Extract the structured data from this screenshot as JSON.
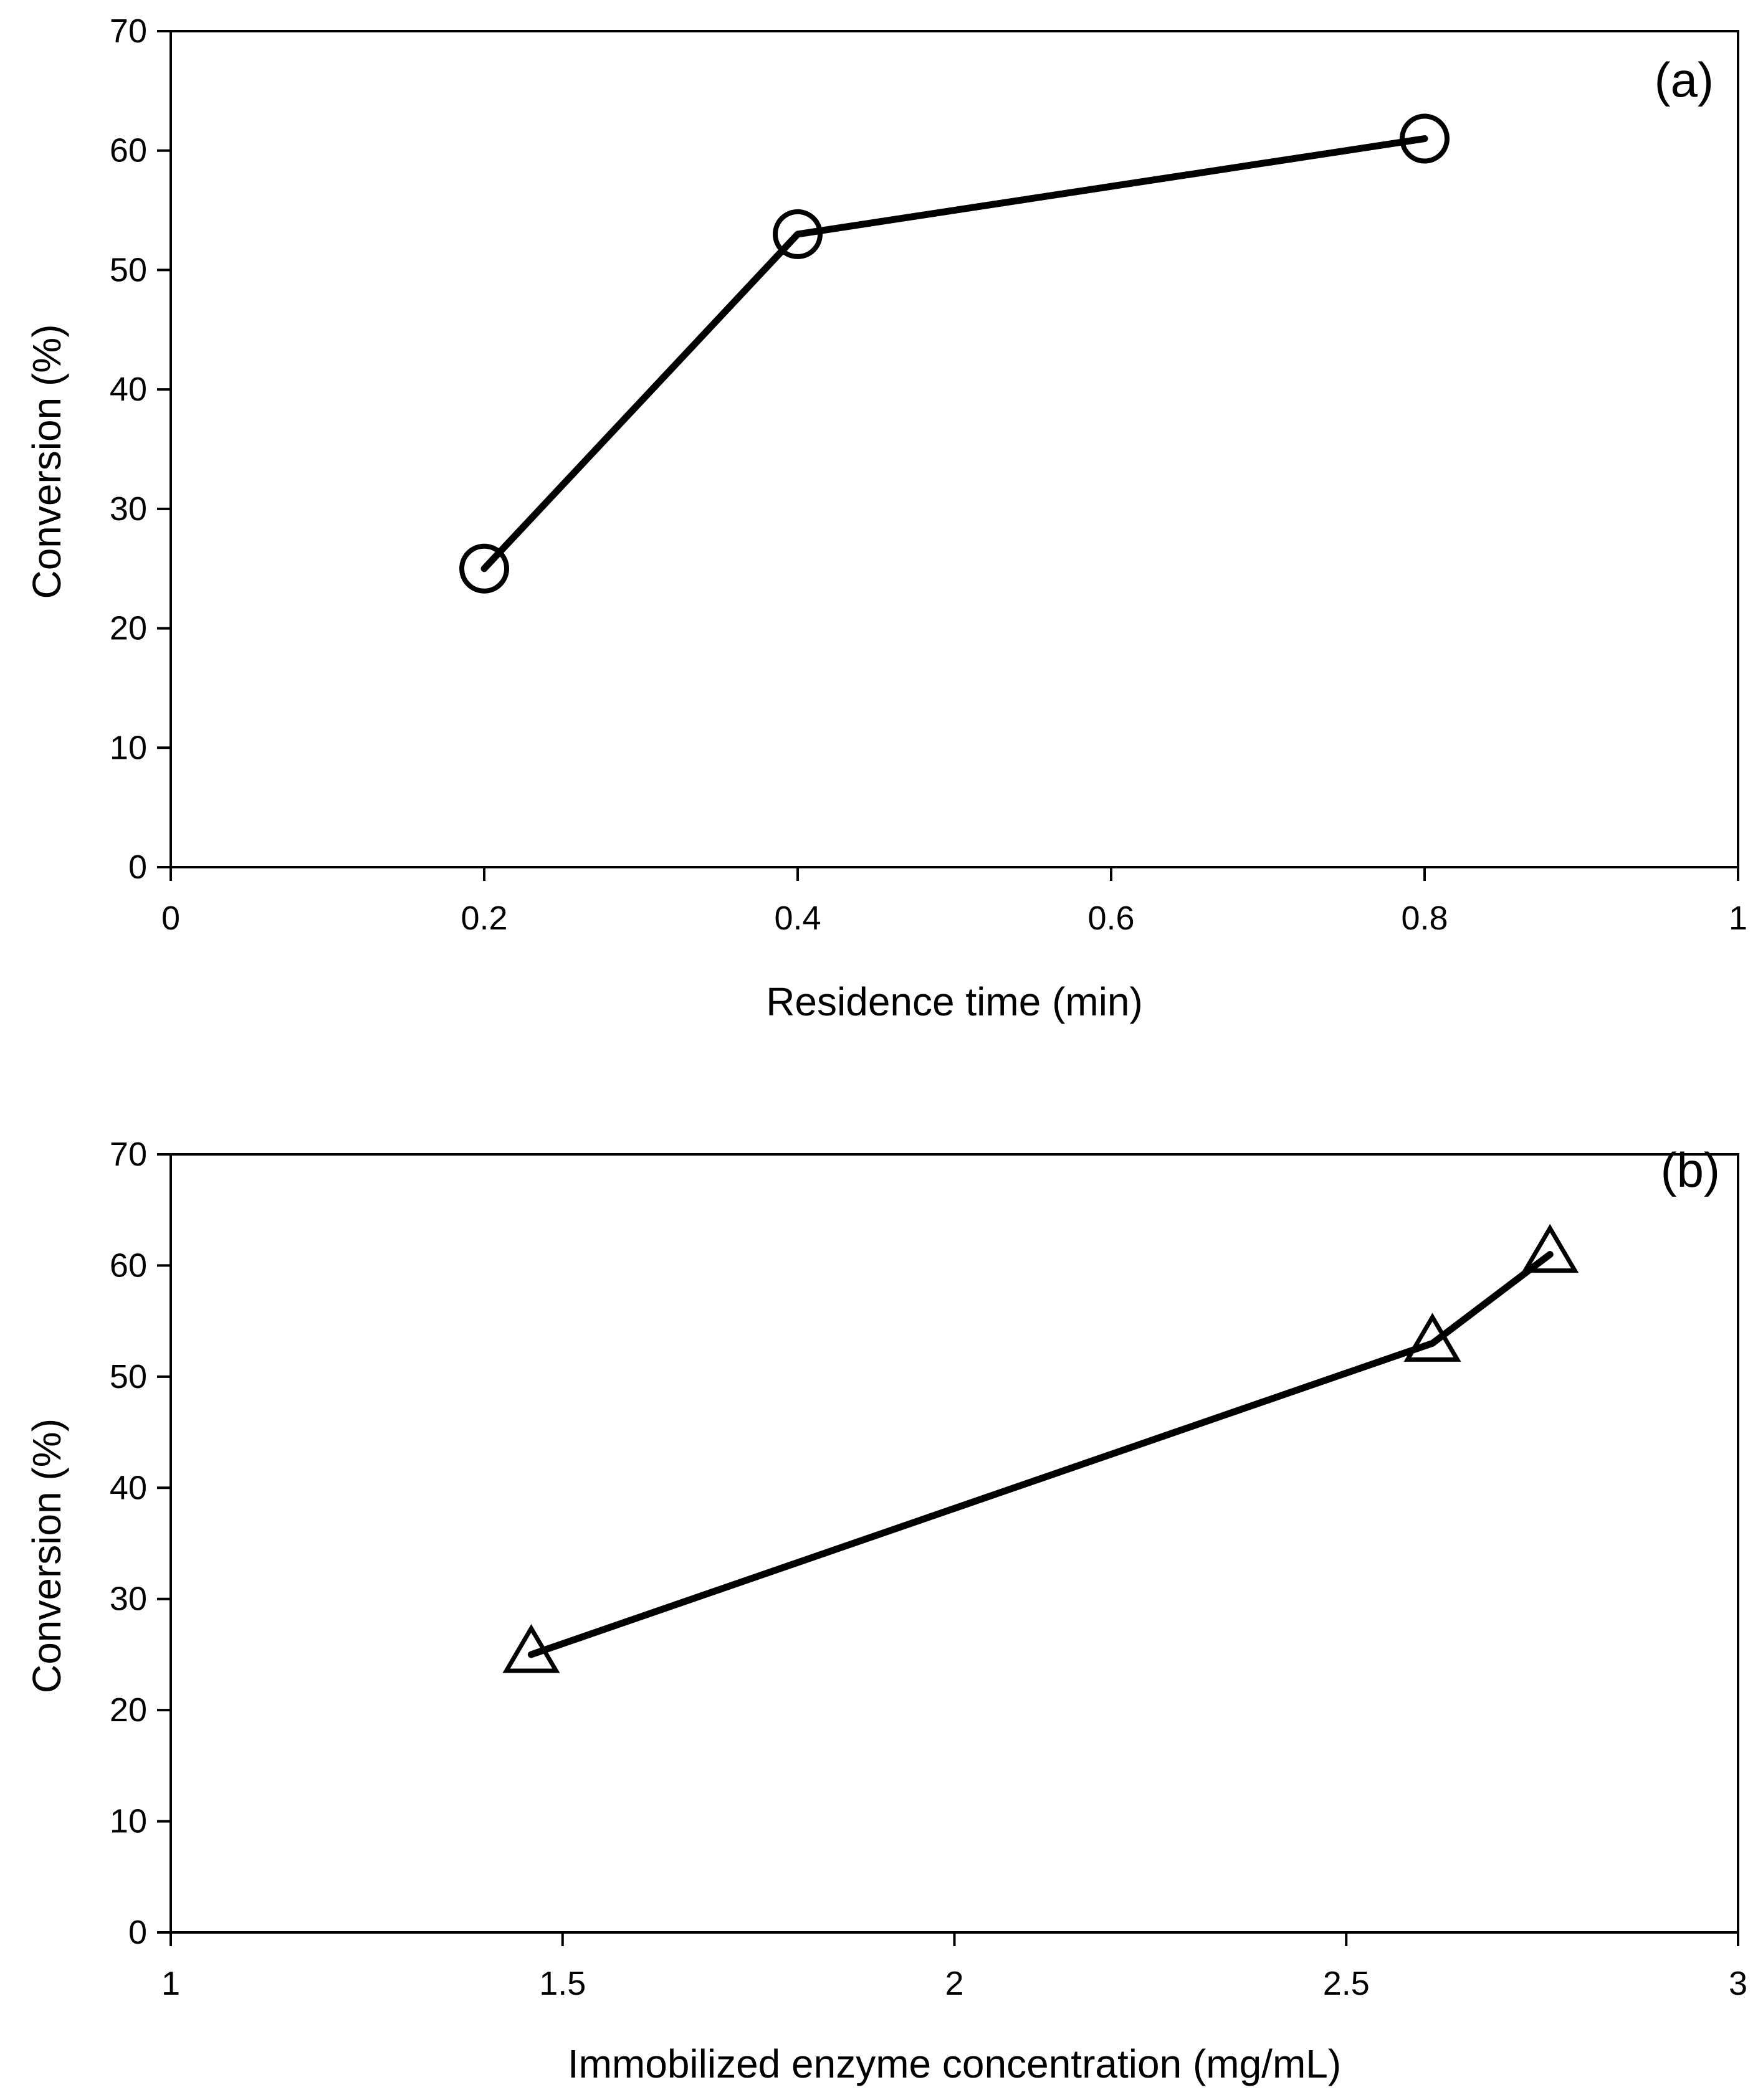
{
  "chart_data": [
    {
      "type": "line",
      "panel_label": "(a)",
      "title": "",
      "xlabel": "Residence time (min)",
      "ylabel": "Conversion (%)",
      "xlim": [
        0,
        1
      ],
      "ylim": [
        0,
        70
      ],
      "xticks": [
        0,
        0.2,
        0.4,
        0.6,
        0.8,
        1
      ],
      "xtick_labels": [
        "0",
        "0.2",
        "0.4",
        "0.6",
        "0.8",
        "1"
      ],
      "yticks": [
        0,
        10,
        20,
        30,
        40,
        50,
        60,
        70
      ],
      "ytick_labels": [
        "0",
        "10",
        "20",
        "30",
        "40",
        "50",
        "60",
        "70"
      ],
      "grid": false,
      "marker": "circle",
      "series": [
        {
          "name": "Conversion",
          "x": [
            0.2,
            0.4,
            0.8
          ],
          "y": [
            25,
            53,
            61
          ]
        }
      ]
    },
    {
      "type": "line",
      "panel_label": "(b)",
      "title": "",
      "xlabel": "Immobilized enzyme concentration (mg/mL)",
      "ylabel": "Conversion (%)",
      "xlim": [
        1,
        3
      ],
      "ylim": [
        0,
        70
      ],
      "xticks": [
        1,
        1.5,
        2,
        2.5,
        3
      ],
      "xtick_labels": [
        "1",
        "1.5",
        "2",
        "2.5",
        "3"
      ],
      "yticks": [
        0,
        10,
        20,
        30,
        40,
        50,
        60,
        70
      ],
      "ytick_labels": [
        "0",
        "10",
        "20",
        "30",
        "40",
        "50",
        "60",
        "70"
      ],
      "grid": false,
      "marker": "triangle",
      "series": [
        {
          "name": "Conversion",
          "x": [
            1.46,
            2.61,
            2.76
          ],
          "y": [
            25,
            53,
            61
          ]
        }
      ]
    }
  ]
}
